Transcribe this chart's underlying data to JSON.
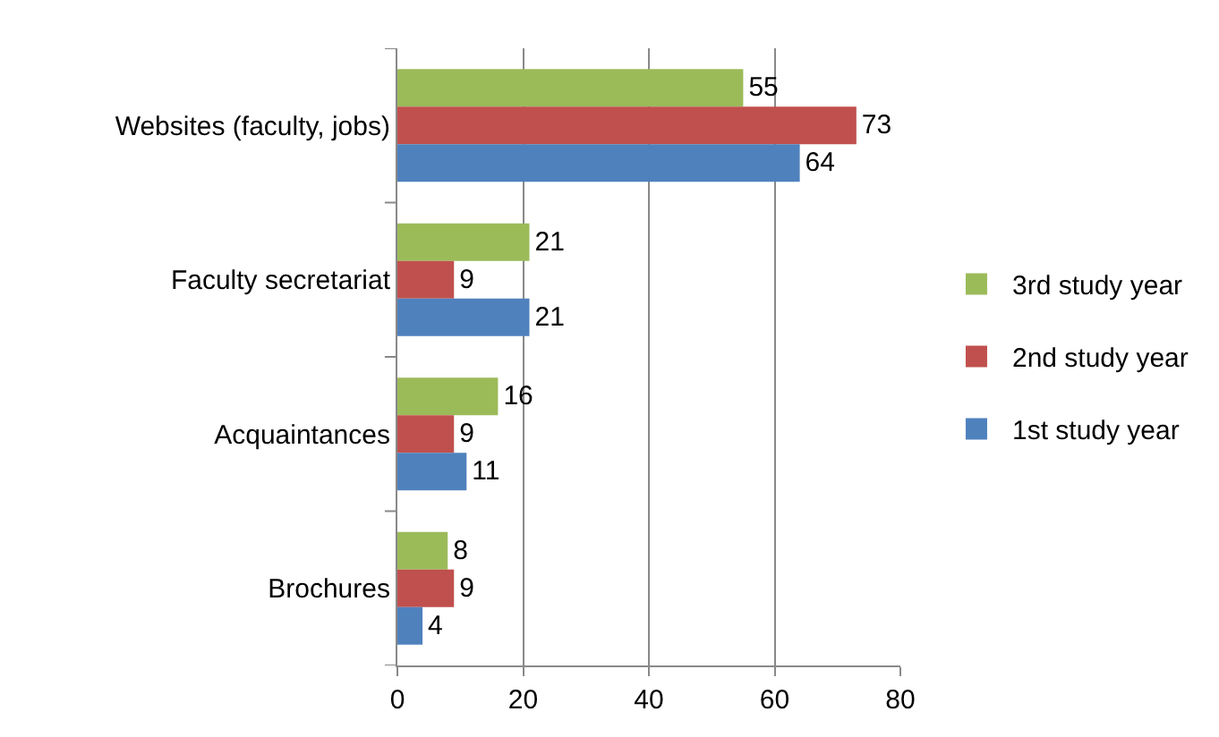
{
  "chart_data": {
    "type": "bar",
    "orientation": "horizontal",
    "categories": [
      "Websites (faculty, jobs)",
      "Faculty secretariat",
      "Acquaintances",
      "Brochures"
    ],
    "series": [
      {
        "name": "3rd study year",
        "color": "#9bbb59",
        "values": [
          55,
          21,
          16,
          8
        ]
      },
      {
        "name": "2nd study year",
        "color": "#c0504d",
        "values": [
          73,
          9,
          9,
          9
        ]
      },
      {
        "name": "1st study year",
        "color": "#4f81bd",
        "values": [
          64,
          21,
          11,
          4
        ]
      }
    ],
    "xlim": [
      0,
      80
    ],
    "xticks": [
      0,
      20,
      40,
      60,
      80
    ],
    "grid": "x",
    "legend": "right",
    "data_labels": true
  }
}
